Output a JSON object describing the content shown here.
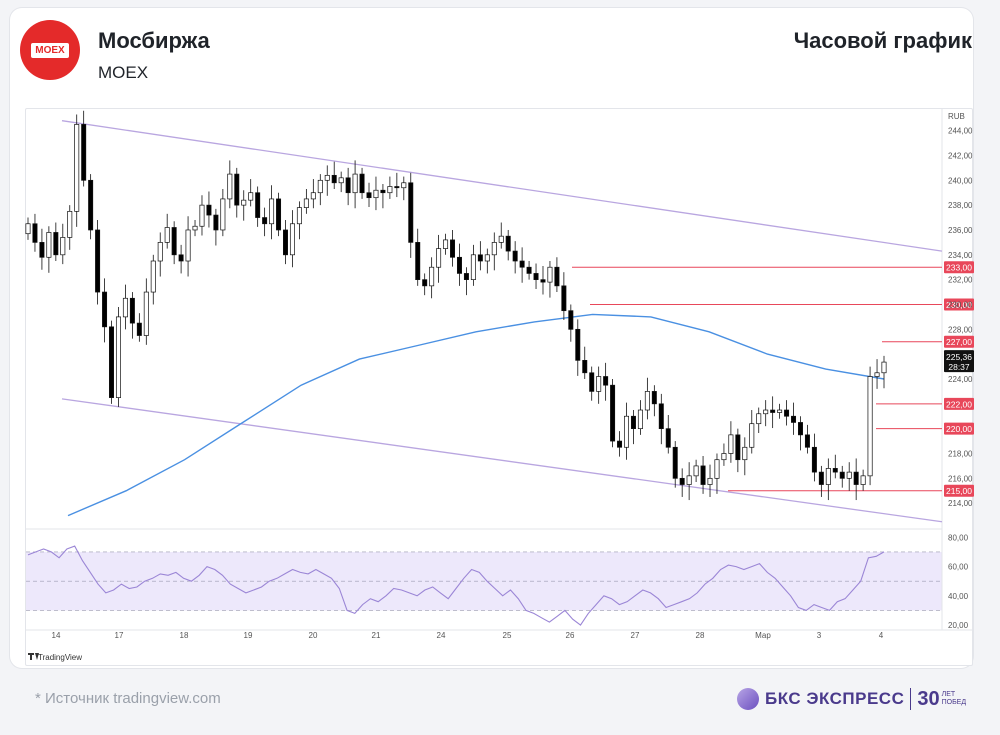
{
  "header": {
    "logo_text": "MOEX",
    "title": "Мосбиржа",
    "ticker": "MOEX",
    "chart_kind": "Часовой график"
  },
  "footer": {
    "source": "*  Источник tradingview.com",
    "brand_name": "БКС ЭКСПРЕСС",
    "brand_years": "30",
    "brand_sub1": "ЛЕТ",
    "brand_sub2": "ПОБЕД"
  },
  "colors": {
    "up": "#2b2b2b",
    "down": "#000000",
    "ma": "#4a90e2",
    "channel": "#b9a6e0",
    "levels": "#e8475a",
    "rsi": "#9b86d6",
    "rsi_band": "#ede8fb"
  },
  "chart_data": {
    "type": "candlestick",
    "currency_label": "RUB",
    "watermark": "TradingView",
    "ylim": [
      212,
      245.5
    ],
    "y_ticks": [
      "244,00",
      "242,00",
      "240,00",
      "238,00",
      "236,00",
      "234,00",
      "232,00",
      "230,00",
      "228,00",
      "226,00",
      "224,00",
      "218,00",
      "216,00",
      "214,00"
    ],
    "x_ticks": [
      "14",
      "17",
      "18",
      "19",
      "20",
      "21",
      "24",
      "25",
      "26",
      "27",
      "28",
      "Мар",
      "3",
      "4"
    ],
    "levels": [
      {
        "value": 233,
        "label": "233,00"
      },
      {
        "value": 230,
        "label": "230,00"
      },
      {
        "value": 227,
        "label": "227,00"
      },
      {
        "value": 222,
        "label": "222,00"
      },
      {
        "value": 220,
        "label": "220,00"
      },
      {
        "value": 215,
        "label": "215,00"
      }
    ],
    "last_price": {
      "value": 225.36,
      "label": "225,36",
      "timer": "28:37"
    },
    "channel": {
      "upper": [
        244.8,
        234.3
      ],
      "lower": [
        222.4,
        212.5
      ]
    },
    "close_series": [
      236.5,
      235.0,
      233.8,
      235.8,
      234.0,
      235.4,
      237.5,
      244.5,
      240.0,
      236.0,
      231.0,
      228.2,
      222.5,
      229.0,
      230.5,
      228.5,
      227.5,
      231.0,
      233.5,
      235.0,
      236.2,
      234.0,
      233.5,
      236.0,
      236.3,
      238.0,
      237.2,
      236.0,
      238.5,
      240.5,
      238.0,
      238.4,
      239.0,
      237.0,
      236.5,
      238.5,
      236.0,
      234.0,
      236.5,
      237.8,
      238.5,
      239.0,
      240.0,
      240.4,
      239.8,
      240.2,
      239.0,
      240.5,
      239.0,
      238.6,
      239.2,
      239.0,
      239.5,
      239.4,
      239.8,
      235.0,
      232.0,
      231.5,
      233.0,
      234.5,
      235.2,
      233.8,
      232.5,
      232.0,
      234.0,
      233.5,
      234.0,
      235.0,
      235.5,
      234.3,
      233.5,
      233.0,
      232.5,
      232.0,
      231.8,
      233.0,
      231.5,
      229.5,
      228.0,
      225.5,
      224.5,
      223.0,
      224.2,
      223.5,
      219.0,
      218.5,
      221.0,
      220.0,
      221.5,
      223.0,
      222.0,
      220.0,
      218.5,
      216.0,
      215.5,
      216.2,
      217.0,
      215.5,
      216.0,
      217.5,
      218.0,
      219.5,
      217.5,
      218.5,
      220.4,
      221.2,
      221.5,
      221.3,
      221.5,
      221.0,
      220.5,
      219.5,
      218.5,
      216.5,
      215.5,
      216.8,
      216.5,
      216.0,
      216.5,
      215.5,
      216.2,
      224.2,
      224.5,
      225.36
    ],
    "ma_series": [
      213.0,
      215.0,
      217.5,
      220.5,
      223.5,
      225.6,
      226.7,
      227.8,
      228.6,
      229.2,
      229.0,
      227.8,
      226.0,
      224.8,
      224.0
    ],
    "rsi": {
      "ylim": [
        18,
        85
      ],
      "y_ticks": [
        "80,00",
        "60,00",
        "40,00",
        "20,00"
      ],
      "band": [
        30,
        70
      ],
      "values": [
        68,
        70,
        72,
        70,
        66,
        72,
        74,
        64,
        56,
        48,
        42,
        44,
        48,
        45,
        46,
        50,
        52,
        55,
        54,
        56,
        52,
        50,
        54,
        60,
        58,
        54,
        48,
        45,
        42,
        44,
        46,
        50,
        52,
        55,
        58,
        56,
        55,
        58,
        55,
        52,
        45,
        30,
        28,
        34,
        38,
        36,
        40,
        45,
        44,
        42,
        40,
        44,
        46,
        42,
        38,
        45,
        52,
        58,
        56,
        50,
        45,
        40,
        44,
        38,
        30,
        28,
        25,
        22,
        26,
        30,
        24,
        20,
        28,
        34,
        40,
        38,
        34,
        36,
        40,
        44,
        42,
        38,
        32,
        34,
        36,
        38,
        42,
        48,
        52,
        58,
        61,
        60,
        58,
        60,
        62,
        56,
        52,
        46,
        40,
        32,
        30,
        34,
        32,
        30,
        36,
        38,
        44,
        50,
        66,
        67,
        70
      ]
    }
  }
}
